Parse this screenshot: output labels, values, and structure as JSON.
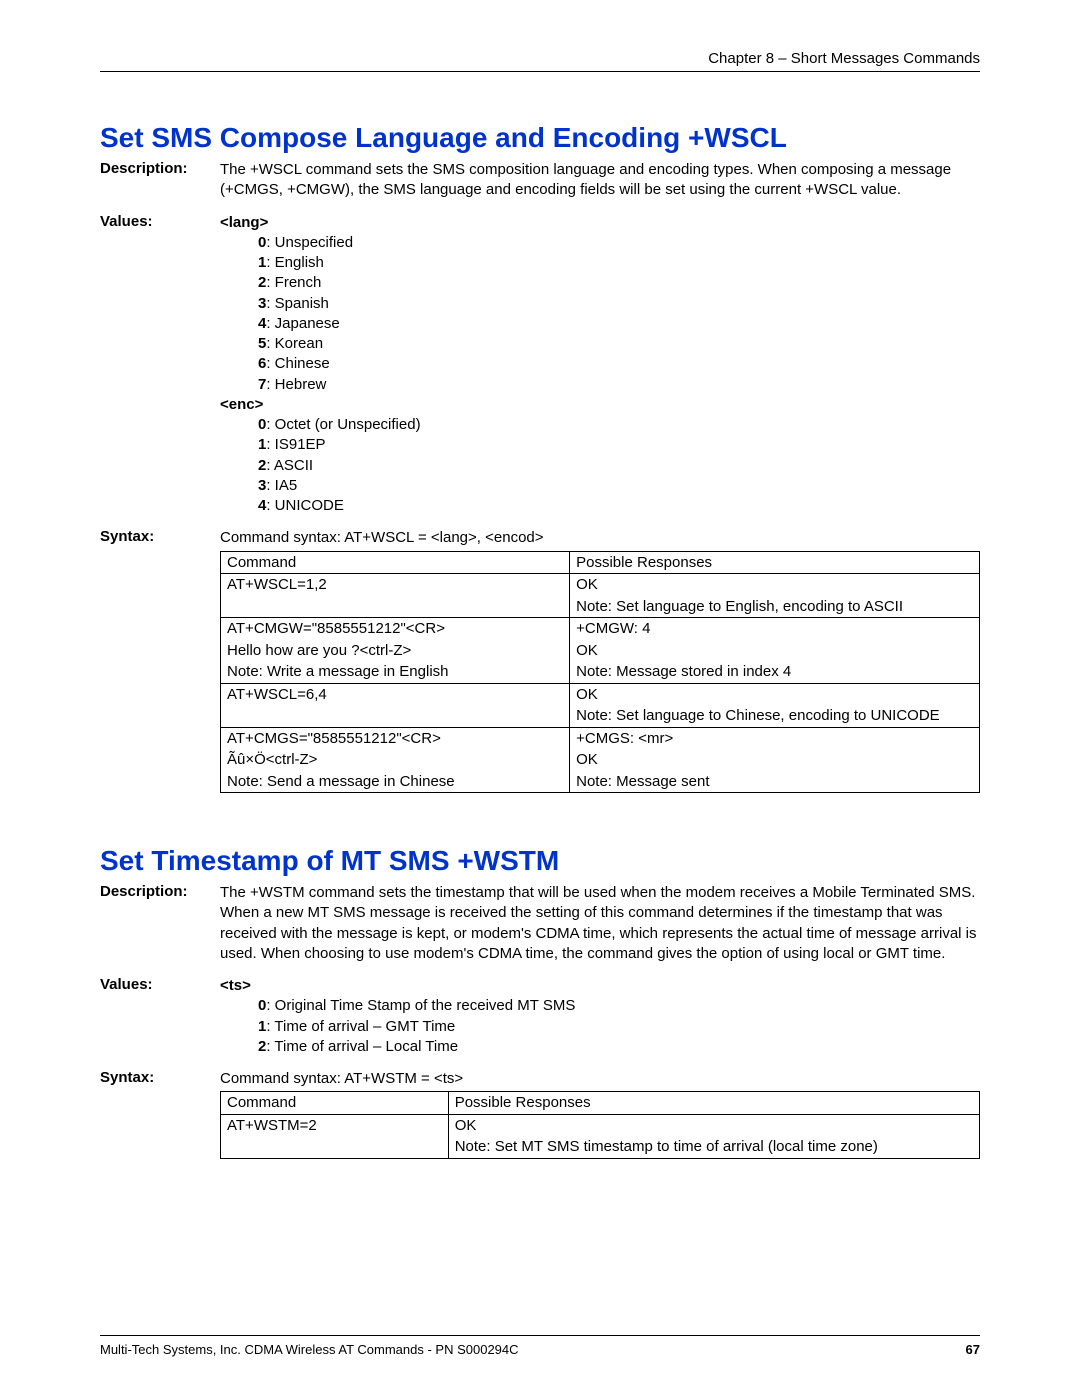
{
  "header": {
    "chapter": "Chapter 8 – Short Messages Commands"
  },
  "section1": {
    "title": "Set SMS Compose Language and Encoding  +WSCL",
    "label_description": "Description:",
    "description": "The +WSCL command sets the SMS composition language and encoding types. When composing a message (+CMGS, +CMGW), the SMS language and encoding fields will be set using the current +WSCL value.",
    "label_values": "Values:",
    "lang": {
      "header": "<lang>",
      "items": [
        {
          "k": "0",
          "v": ": Unspecified"
        },
        {
          "k": "1",
          "v": ": English"
        },
        {
          "k": "2",
          "v": ": French"
        },
        {
          "k": "3",
          "v": ": Spanish"
        },
        {
          "k": "4",
          "v": ": Japanese"
        },
        {
          "k": "5",
          "v": ": Korean"
        },
        {
          "k": "6",
          "v": ": Chinese"
        },
        {
          "k": "7",
          "v": ": Hebrew"
        }
      ]
    },
    "enc": {
      "header": "<enc>",
      "items": [
        {
          "k": "0",
          "v": ": Octet (or Unspecified)"
        },
        {
          "k": "1",
          "v": ": IS91EP"
        },
        {
          "k": "2",
          "v": ": ASCII"
        },
        {
          "k": "3",
          "v": ": IA5"
        },
        {
          "k": "4",
          "v": ": UNICODE"
        }
      ]
    },
    "label_syntax": "Syntax:",
    "syntax_text": "Command syntax: AT+WSCL = <lang>, <encod>",
    "table": {
      "col1_header": "Command",
      "col2_header": "Possible Responses",
      "col1_width": "46%",
      "col2_width": "54%",
      "rows": [
        {
          "c1": "AT+WSCL=1,2",
          "c2": "OK",
          "top": true
        },
        {
          "c1": "",
          "c2": "Note: Set language to English, encoding to ASCII"
        },
        {
          "c1": "AT+CMGW=\"8585551212\"<CR>",
          "c2": "+CMGW: 4",
          "top": true
        },
        {
          "c1": "Hello how are you ?<ctrl-Z>",
          "c2": "OK"
        },
        {
          "c1": "Note: Write a message in English",
          "c2": "Note: Message stored in index 4"
        },
        {
          "c1": "AT+WSCL=6,4",
          "c2": "OK",
          "top": true
        },
        {
          "c1": "",
          "c2": "Note: Set language to Chinese, encoding to UNICODE"
        },
        {
          "c1": "AT+CMGS=\"8585551212\"<CR>",
          "c2": "+CMGS: <mr>",
          "top": true
        },
        {
          "c1": "Ãû×Ö<ctrl-Z>",
          "c2": "OK"
        },
        {
          "c1": "Note: Send a message in Chinese",
          "c2": "Note: Message sent",
          "last": true
        }
      ]
    }
  },
  "section2": {
    "title": "Set Timestamp of MT SMS  +WSTM",
    "label_description": "Description:",
    "description": "The +WSTM command sets the timestamp that will be used when the modem receives a Mobile Terminated SMS. When a new MT SMS message is received the setting of this command determines if the timestamp that was received with the message is kept, or modem's CDMA time, which represents the actual time of message arrival is used. When choosing to use modem's CDMA time, the command gives the option of using local or GMT time.",
    "label_values": "Values:",
    "ts": {
      "header": "<ts>",
      "items": [
        {
          "k": "0",
          "v": ": Original Time Stamp of the received MT SMS"
        },
        {
          "k": "1",
          "v": ": Time of arrival – GMT Time"
        },
        {
          "k": "2",
          "v": ": Time of arrival – Local Time"
        }
      ]
    },
    "label_syntax": "Syntax:",
    "syntax_text": "Command syntax: AT+WSTM = <ts>",
    "table": {
      "col1_header": "Command",
      "col2_header": "Possible Responses",
      "col1_width": "30%",
      "col2_width": "70%",
      "rows": [
        {
          "c1": "AT+WSTM=2",
          "c2": "OK",
          "top": true
        },
        {
          "c1": "",
          "c2": "Note: Set MT SMS timestamp to time of arrival (local time zone)",
          "last": true
        }
      ]
    }
  },
  "footer": {
    "left": "Multi-Tech Systems, Inc. CDMA Wireless AT Commands - PN S000294C",
    "page": "67"
  }
}
